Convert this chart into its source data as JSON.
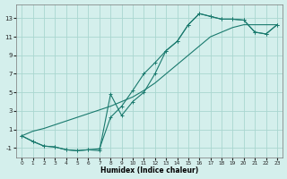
{
  "xlabel": "Humidex (Indice chaleur)",
  "bg_color": "#d4efec",
  "grid_color": "#aad6d0",
  "line_color": "#1a7a6e",
  "xlim": [
    -0.5,
    23.5
  ],
  "ylim": [
    -2.0,
    14.5
  ],
  "xticks": [
    0,
    1,
    2,
    3,
    4,
    5,
    6,
    7,
    8,
    9,
    10,
    11,
    12,
    13,
    14,
    15,
    16,
    17,
    18,
    19,
    20,
    21,
    22,
    23
  ],
  "yticks": [
    -1,
    1,
    3,
    5,
    7,
    9,
    11,
    13
  ],
  "line1_x": [
    0,
    1,
    2,
    3,
    4,
    5,
    6,
    7,
    8,
    9,
    10,
    11,
    12,
    13,
    14,
    15,
    16,
    17,
    18,
    19,
    20,
    21,
    22,
    23
  ],
  "line1_y": [
    0.3,
    -0.3,
    -0.8,
    -0.9,
    -1.2,
    -1.3,
    -1.2,
    -1.3,
    4.8,
    2.5,
    4.0,
    5.0,
    7.0,
    9.5,
    10.5,
    12.3,
    13.5,
    13.2,
    12.9,
    12.9,
    12.8,
    11.5,
    11.3,
    12.3
  ],
  "line2_x": [
    0,
    1,
    2,
    3,
    4,
    5,
    6,
    7,
    8,
    9,
    10,
    11,
    12,
    13,
    14,
    15,
    16,
    17,
    18,
    19,
    20,
    21,
    22,
    23
  ],
  "line2_y": [
    0.3,
    -0.3,
    -0.8,
    -0.9,
    -1.2,
    -1.3,
    -1.2,
    -1.1,
    2.3,
    3.5,
    5.2,
    7.0,
    8.2,
    9.5,
    10.5,
    12.3,
    13.5,
    13.2,
    12.9,
    12.9,
    12.8,
    11.5,
    11.3,
    12.3
  ],
  "line3_x": [
    0,
    1,
    2,
    3,
    4,
    5,
    6,
    7,
    8,
    9,
    10,
    11,
    12,
    13,
    14,
    15,
    16,
    17,
    18,
    19,
    20,
    21,
    22,
    23
  ],
  "line3_y": [
    0.3,
    0.8,
    1.1,
    1.5,
    1.9,
    2.3,
    2.7,
    3.1,
    3.5,
    4.0,
    4.5,
    5.2,
    6.0,
    7.0,
    8.0,
    9.0,
    10.0,
    11.0,
    11.5,
    12.0,
    12.3,
    12.3,
    12.3,
    12.3
  ]
}
